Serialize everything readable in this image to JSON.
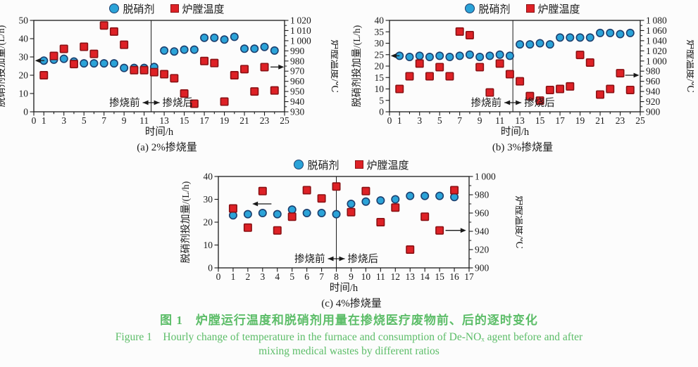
{
  "page": {
    "background": "#fcfcfc"
  },
  "legend": {
    "series1": "脱硝剂",
    "series2": "炉膛温度"
  },
  "colors": {
    "agent_fill": "#2ba3d8",
    "agent_stroke": "#1c3f6e",
    "temp_fill": "#de2126",
    "temp_stroke": "#8a1114",
    "axis": "#1a1a1a",
    "caption_green": "#5cbd68"
  },
  "figure_caption": {
    "cn": "图 1　炉膛运行温度和脱硝剂用量在掺烧医疗废物前、后的逐时变化",
    "en_line1": "Figure 1　Hourly change of temperature in the furnace and consumption of De-NOₓ agent before and after",
    "en_line2": "mixing medical wastes by different ratios"
  },
  "chart_data": [
    {
      "type": "scatter",
      "subtitle": "(a) 2%掺烧量",
      "xlabel": "时间/h",
      "ylabel_left": "脱硝剂投加量/(L/h)",
      "ylabel_right": "炉膛温度/℃",
      "xlim": [
        0,
        25
      ],
      "x_labeled_ticks": [
        0,
        1,
        3,
        5,
        7,
        9,
        11,
        13,
        15,
        17,
        19,
        21,
        23,
        25
      ],
      "ylim_left": [
        0,
        50
      ],
      "yticks_left": [
        0,
        10,
        20,
        30,
        40,
        50
      ],
      "ylim_right": [
        930,
        1020
      ],
      "yticks_right": [
        930,
        940,
        950,
        960,
        970,
        980,
        990,
        1000,
        1010,
        1020
      ],
      "divider_x": 11.7,
      "annotation": {
        "pre": "掺烧前",
        "post": "掺烧后",
        "y": 5
      },
      "axis_arrows": [
        {
          "y": 28,
          "from": 1.05,
          "to": 0.12
        },
        {
          "y": 24.5,
          "from": 23.6,
          "to": 24.95
        }
      ],
      "series": [
        {
          "name": "脱硝剂",
          "marker": "circle",
          "axis": "left",
          "x": [
            1,
            2,
            3,
            4,
            5,
            6,
            7,
            8,
            9,
            10,
            11,
            12,
            13,
            14,
            15,
            16,
            17,
            18,
            19,
            20,
            21,
            22,
            23,
            24
          ],
          "y": [
            28,
            28.5,
            29,
            27.5,
            26.5,
            26.5,
            26.5,
            26.5,
            24,
            24,
            24,
            24.5,
            33.5,
            33,
            34,
            34,
            40.5,
            40.5,
            39.5,
            41,
            34.5,
            34.5,
            35.5,
            33.5
          ]
        },
        {
          "name": "炉膛温度",
          "marker": "square",
          "axis": "right",
          "x": [
            1,
            2,
            3,
            4,
            5,
            6,
            7,
            8,
            9,
            10,
            11,
            12,
            13,
            14,
            15,
            16,
            17,
            18,
            19,
            20,
            21,
            22,
            23,
            24
          ],
          "y": [
            966,
            985,
            992,
            977,
            994,
            987,
            1015,
            1009,
            996,
            971,
            971,
            969,
            967,
            963,
            948,
            938,
            980,
            978,
            940,
            966,
            972,
            950,
            974,
            951
          ]
        }
      ]
    },
    {
      "type": "scatter",
      "subtitle": "(b) 3%掺烧量",
      "xlabel": "时间/h",
      "ylabel_left": "脱硝剂投加量/(L/h)",
      "ylabel_right": "炉膛温度/℃",
      "xlim": [
        0,
        25
      ],
      "x_labeled_ticks": [
        0,
        1,
        3,
        5,
        7,
        9,
        11,
        13,
        15,
        17,
        19,
        21,
        23,
        25
      ],
      "ylim_left": [
        0,
        40
      ],
      "yticks_left": [
        0,
        5,
        10,
        15,
        20,
        25,
        30,
        35,
        40
      ],
      "ylim_right": [
        900,
        1080
      ],
      "yticks_right": [
        900,
        920,
        940,
        960,
        980,
        1000,
        1020,
        1040,
        1060,
        1080
      ],
      "divider_x": 12.3,
      "annotation": {
        "pre": "掺烧前",
        "post": "掺烧后",
        "y": 4
      },
      "axis_arrows": [
        {
          "y": 24.5,
          "from": 1.0,
          "to": 0.12
        },
        {
          "y": 16,
          "from": 23.5,
          "to": 24.9
        }
      ],
      "series": [
        {
          "name": "脱硝剂",
          "marker": "circle",
          "axis": "left",
          "x": [
            1,
            2,
            3,
            4,
            5,
            6,
            7,
            8,
            9,
            10,
            11,
            12,
            13,
            14,
            15,
            16,
            17,
            18,
            19,
            20,
            21,
            22,
            23,
            24
          ],
          "y": [
            24.5,
            24,
            24.5,
            24,
            24.5,
            24,
            24.5,
            25,
            24,
            24.5,
            25,
            24.5,
            29.5,
            29.5,
            30,
            29.5,
            32.5,
            32.5,
            32.5,
            32.5,
            34.5,
            34.5,
            34,
            34.5
          ]
        },
        {
          "name": "炉膛温度",
          "marker": "square",
          "axis": "right",
          "x": [
            1,
            2,
            3,
            4,
            5,
            6,
            7,
            8,
            9,
            10,
            11,
            12,
            13,
            14,
            15,
            16,
            17,
            18,
            19,
            20,
            21,
            22,
            23,
            24
          ],
          "y": [
            945,
            970,
            995,
            970,
            988,
            970,
            1058,
            1051,
            988,
            938,
            995,
            974,
            960,
            931,
            922,
            943,
            945,
            950,
            1012,
            997,
            934,
            945,
            976,
            943
          ]
        }
      ]
    },
    {
      "type": "scatter",
      "subtitle": "(c) 4%掺烧量",
      "xlabel": "时间/h",
      "ylabel_left": "脱硝剂投加量/(L/h)",
      "ylabel_right": "炉膛温度/℃",
      "xlim": [
        0,
        17
      ],
      "x_labeled_ticks": [
        0,
        1,
        2,
        3,
        4,
        5,
        6,
        7,
        8,
        9,
        10,
        11,
        12,
        13,
        14,
        15,
        16,
        17
      ],
      "ylim_left": [
        0,
        40
      ],
      "yticks_left": [
        0,
        10,
        20,
        30,
        40
      ],
      "ylim_right": [
        900,
        1000
      ],
      "yticks_right": [
        900,
        920,
        940,
        960,
        980,
        1000
      ],
      "divider_x": 8,
      "annotation": {
        "pre": "掺烧前",
        "post": "掺烧后",
        "y": 4
      },
      "axis_arrows": [
        {
          "y": 28,
          "from": 3.6,
          "to": 2.3
        },
        {
          "y": 16.4,
          "from": 15.4,
          "to": 16.8
        }
      ],
      "series": [
        {
          "name": "脱硝剂",
          "marker": "circle",
          "axis": "left",
          "x": [
            1,
            2,
            3,
            4,
            5,
            6,
            7,
            8,
            9,
            10,
            11,
            12,
            13,
            14,
            15,
            16
          ],
          "y": [
            23,
            23.5,
            24,
            23.5,
            25.5,
            24,
            24,
            23.5,
            28,
            29,
            29.5,
            30,
            31.5,
            31.5,
            31.5,
            31
          ]
        },
        {
          "name": "炉膛温度",
          "marker": "square",
          "axis": "right",
          "x": [
            1,
            2,
            3,
            4,
            5,
            6,
            7,
            8,
            9,
            10,
            11,
            12,
            13,
            14,
            15,
            16
          ],
          "y": [
            965,
            944,
            984,
            941,
            956,
            985,
            976,
            989,
            961,
            984,
            950,
            966,
            920,
            956,
            941,
            985
          ]
        }
      ]
    }
  ]
}
